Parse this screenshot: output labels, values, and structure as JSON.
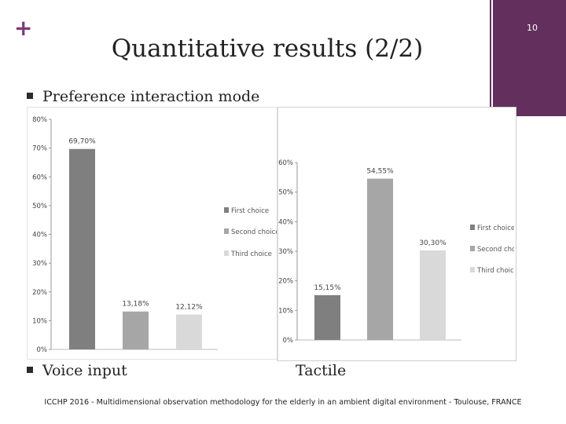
{
  "slide": {
    "plus_symbol": "+",
    "slide_number": "10",
    "title": "Quantitative results (2/2)",
    "bullet_preference": "Preference interaction mode",
    "bullet_voice": "Voice input",
    "label_tactile": "Tactile",
    "footer": "ICCHP 2016 - Multidimensional observation methodology for the elderly in an ambient digital environment - Toulouse, FRANCE",
    "accent_color": "#63305e"
  },
  "chart_data": [
    {
      "type": "bar",
      "categories": [
        "First choice",
        "Second choice",
        "Third choice"
      ],
      "values": [
        69.7,
        13.18,
        12.12
      ],
      "data_labels": [
        "69,70%",
        "13,18%",
        "12,12%"
      ],
      "colors": [
        "#7f7f7f",
        "#a6a6a6",
        "#d9d9d9"
      ],
      "legend": [
        "First choice",
        "Second choice",
        "Third choice"
      ],
      "legend_position": "right",
      "ylim": [
        0,
        80
      ],
      "yticks": [
        "0%",
        "10%",
        "20%",
        "30%",
        "40%",
        "50%",
        "60%",
        "70%",
        "80%"
      ],
      "grid": false
    },
    {
      "type": "bar",
      "categories": [
        "First choice",
        "Second choice",
        "Third choice"
      ],
      "values": [
        15.15,
        54.55,
        30.3
      ],
      "data_labels": [
        "15,15%",
        "54,55%",
        "30,30%"
      ],
      "colors": [
        "#7f7f7f",
        "#a6a6a6",
        "#d9d9d9"
      ],
      "legend": [
        "First choice",
        "Second choice",
        "Third choice"
      ],
      "legend_position": "right",
      "ylim": [
        0,
        60
      ],
      "yticks": [
        "0%",
        "10%",
        "20%",
        "30%",
        "40%",
        "50%",
        "60%"
      ],
      "grid": false
    }
  ]
}
